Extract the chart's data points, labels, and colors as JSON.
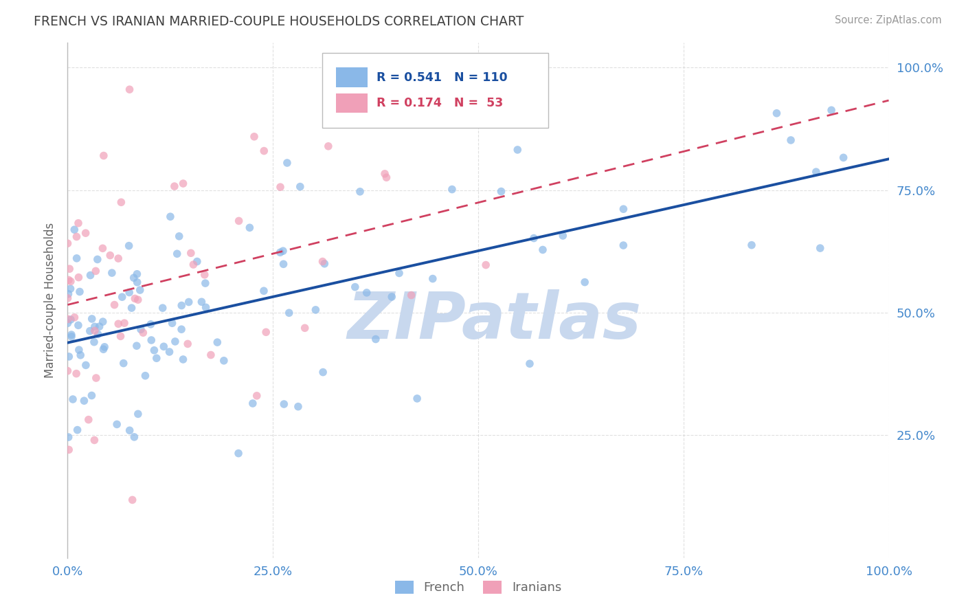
{
  "title": "FRENCH VS IRANIAN MARRIED-COUPLE HOUSEHOLDS CORRELATION CHART",
  "source": "Source: ZipAtlas.com",
  "ylabel": "Married-couple Households",
  "watermark": "ZIPatlas",
  "french_R": 0.541,
  "french_N": 110,
  "iranians_R": 0.174,
  "iranians_N": 53,
  "french_color": "#8ab8e8",
  "iranian_color": "#f0a0b8",
  "french_line_color": "#1a4fa0",
  "iranian_line_color": "#d04060",
  "background_color": "#ffffff",
  "grid_color": "#cccccc",
  "title_color": "#404040",
  "source_color": "#999999",
  "watermark_color": "#c8d8ee",
  "tick_label_color": "#4488cc",
  "axis_label_color": "#666666",
  "legend_box_color": "#dddddd",
  "xlim": [
    0.0,
    1.0
  ],
  "ylim": [
    0.0,
    1.05
  ],
  "xticks": [
    0.0,
    0.25,
    0.5,
    0.75,
    1.0
  ],
  "yticks": [
    0.25,
    0.5,
    0.75,
    1.0
  ],
  "xtick_labels": [
    "0.0%",
    "25.0%",
    "50.0%",
    "75.0%",
    "100.0%"
  ],
  "ytick_labels": [
    "25.0%",
    "50.0%",
    "75.0%",
    "100.0%"
  ],
  "french_seed": 42,
  "iranian_seed": 7,
  "marker_size": 70,
  "marker_alpha": 0.7
}
